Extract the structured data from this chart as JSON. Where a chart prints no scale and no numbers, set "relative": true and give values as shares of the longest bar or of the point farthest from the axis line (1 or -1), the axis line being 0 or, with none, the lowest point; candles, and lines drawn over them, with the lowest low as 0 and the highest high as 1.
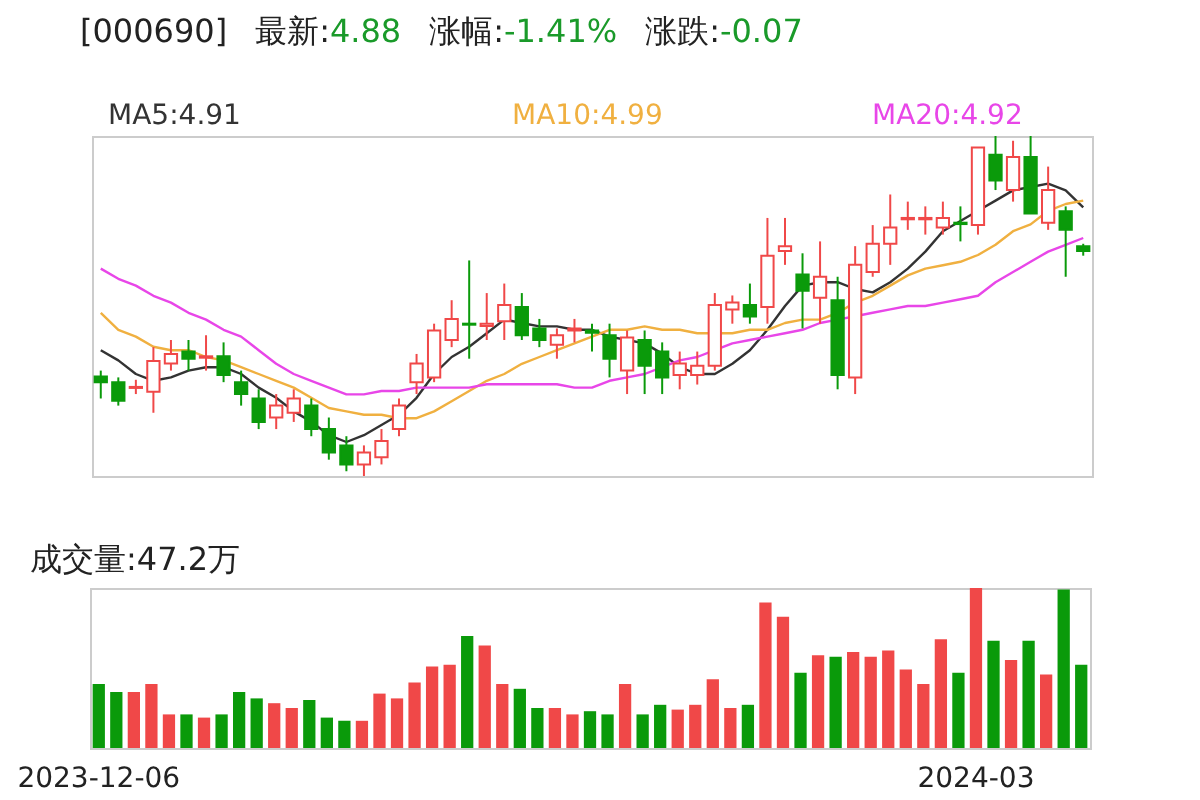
{
  "chart_data": [
    {
      "type": "candlestick",
      "title": "[000690]",
      "annotations": [
        "最新:4.88",
        "涨幅:-1.41%",
        "涨跌:-0.07"
      ],
      "relative": true,
      "categories": [
        null,
        null,
        null,
        null,
        null,
        null,
        null,
        null,
        null,
        null,
        null,
        null,
        null,
        null,
        null,
        null,
        null,
        null,
        null,
        null,
        null,
        null,
        null,
        null,
        null,
        null,
        null,
        null,
        null,
        null,
        null,
        null,
        null,
        null,
        null,
        null,
        null,
        null,
        null,
        null,
        null,
        null,
        null,
        null,
        null,
        null,
        null,
        null,
        null,
        null,
        null,
        null,
        null,
        null,
        null,
        null,
        null
      ],
      "ohlc": [
        [
          0.293,
          0.31,
          0.228,
          0.276
        ],
        [
          0.276,
          0.29,
          0.207,
          0.221
        ],
        [
          0.259,
          0.283,
          0.241,
          0.262
        ],
        [
          0.248,
          0.379,
          0.186,
          0.338
        ],
        [
          0.331,
          0.4,
          0.31,
          0.359
        ],
        [
          0.366,
          0.4,
          0.31,
          0.345
        ],
        [
          0.348,
          0.414,
          0.31,
          0.352
        ],
        [
          0.352,
          0.393,
          0.276,
          0.297
        ],
        [
          0.276,
          0.31,
          0.207,
          0.241
        ],
        [
          0.228,
          0.255,
          0.138,
          0.159
        ],
        [
          0.172,
          0.241,
          0.138,
          0.207
        ],
        [
          0.186,
          0.255,
          0.159,
          0.228
        ],
        [
          0.207,
          0.228,
          0.117,
          0.138
        ],
        [
          0.138,
          0.172,
          0.048,
          0.069
        ],
        [
          0.09,
          0.117,
          0.014,
          0.034
        ],
        [
          0.034,
          0.09,
          0.0,
          0.069
        ],
        [
          0.055,
          0.138,
          0.034,
          0.103
        ],
        [
          0.138,
          0.228,
          0.117,
          0.207
        ],
        [
          0.276,
          0.359,
          0.241,
          0.331
        ],
        [
          0.29,
          0.448,
          0.276,
          0.428
        ],
        [
          0.4,
          0.517,
          0.379,
          0.462
        ],
        [
          0.448,
          0.634,
          0.345,
          0.445
        ],
        [
          0.441,
          0.538,
          0.4,
          0.448
        ],
        [
          0.455,
          0.566,
          0.4,
          0.503
        ],
        [
          0.497,
          0.538,
          0.4,
          0.414
        ],
        [
          0.434,
          0.462,
          0.379,
          0.4
        ],
        [
          0.386,
          0.434,
          0.345,
          0.414
        ],
        [
          0.428,
          0.462,
          0.393,
          0.434
        ],
        [
          0.428,
          0.448,
          0.366,
          0.421
        ],
        [
          0.414,
          0.448,
          0.29,
          0.345
        ],
        [
          0.31,
          0.428,
          0.241,
          0.407
        ],
        [
          0.4,
          0.428,
          0.241,
          0.324
        ],
        [
          0.366,
          0.393,
          0.241,
          0.29
        ],
        [
          0.297,
          0.366,
          0.255,
          0.331
        ],
        [
          0.297,
          0.366,
          0.269,
          0.324
        ],
        [
          0.324,
          0.538,
          0.31,
          0.503
        ],
        [
          0.49,
          0.531,
          0.448,
          0.51
        ],
        [
          0.503,
          0.566,
          0.448,
          0.469
        ],
        [
          0.497,
          0.759,
          0.448,
          0.648
        ],
        [
          0.662,
          0.759,
          0.621,
          0.676
        ],
        [
          0.593,
          0.655,
          0.434,
          0.545
        ],
        [
          0.524,
          0.69,
          0.448,
          0.586
        ],
        [
          0.517,
          0.586,
          0.255,
          0.297
        ],
        [
          0.29,
          0.676,
          0.241,
          0.621
        ],
        [
          0.6,
          0.738,
          0.586,
          0.683
        ],
        [
          0.683,
          0.828,
          0.621,
          0.731
        ],
        [
          0.755,
          0.807,
          0.724,
          0.759
        ],
        [
          0.755,
          0.793,
          0.71,
          0.759
        ],
        [
          0.731,
          0.807,
          0.71,
          0.759
        ],
        [
          0.745,
          0.793,
          0.69,
          0.741
        ],
        [
          0.738,
          0.966,
          0.71,
          0.966
        ],
        [
          0.945,
          1.0,
          0.841,
          0.869
        ],
        [
          0.841,
          0.986,
          0.807,
          0.938
        ],
        [
          0.938,
          1.0,
          0.772,
          0.772
        ],
        [
          0.745,
          0.91,
          0.724,
          0.841
        ],
        [
          0.779,
          0.793,
          0.586,
          0.724
        ],
        [
          0.676,
          0.683,
          0.648,
          0.662
        ]
      ],
      "series": [
        {
          "name": "MA5:4.91",
          "type": "line",
          "color": "#333333",
          "values": [
            0.37,
            0.34,
            0.3,
            0.28,
            0.29,
            0.31,
            0.32,
            0.32,
            0.3,
            0.26,
            0.23,
            0.19,
            0.16,
            0.12,
            0.1,
            0.12,
            0.15,
            0.18,
            0.23,
            0.3,
            0.35,
            0.38,
            0.42,
            0.46,
            0.45,
            0.44,
            0.44,
            0.43,
            0.43,
            0.41,
            0.4,
            0.39,
            0.36,
            0.32,
            0.3,
            0.3,
            0.33,
            0.37,
            0.43,
            0.5,
            0.56,
            0.57,
            0.57,
            0.55,
            0.54,
            0.57,
            0.61,
            0.66,
            0.72,
            0.75,
            0.78,
            0.81,
            0.84,
            0.85,
            0.86,
            0.84,
            0.79
          ]
        },
        {
          "name": "MA10:4.99",
          "type": "line",
          "color": "#f0b040",
          "values": [
            0.48,
            0.43,
            0.41,
            0.38,
            0.37,
            0.37,
            0.35,
            0.34,
            0.32,
            0.3,
            0.28,
            0.26,
            0.23,
            0.2,
            0.19,
            0.18,
            0.18,
            0.17,
            0.17,
            0.19,
            0.22,
            0.25,
            0.28,
            0.3,
            0.33,
            0.35,
            0.37,
            0.39,
            0.41,
            0.43,
            0.43,
            0.44,
            0.43,
            0.43,
            0.42,
            0.42,
            0.42,
            0.43,
            0.43,
            0.45,
            0.46,
            0.46,
            0.48,
            0.51,
            0.53,
            0.56,
            0.59,
            0.61,
            0.62,
            0.63,
            0.65,
            0.68,
            0.72,
            0.74,
            0.78,
            0.8,
            0.81
          ]
        },
        {
          "name": "MA20:4.92",
          "type": "line",
          "color": "#e846e8",
          "values": [
            0.61,
            0.58,
            0.56,
            0.53,
            0.51,
            0.48,
            0.46,
            0.43,
            0.41,
            0.37,
            0.33,
            0.3,
            0.28,
            0.26,
            0.24,
            0.24,
            0.25,
            0.25,
            0.26,
            0.26,
            0.26,
            0.26,
            0.27,
            0.27,
            0.27,
            0.27,
            0.27,
            0.26,
            0.26,
            0.28,
            0.29,
            0.3,
            0.32,
            0.34,
            0.35,
            0.37,
            0.39,
            0.4,
            0.41,
            0.42,
            0.43,
            0.45,
            0.46,
            0.47,
            0.48,
            0.49,
            0.5,
            0.5,
            0.51,
            0.52,
            0.53,
            0.57,
            0.6,
            0.63,
            0.66,
            0.68,
            0.7
          ]
        }
      ]
    },
    {
      "type": "bar",
      "title": "成交量:47.2万",
      "relative": true,
      "categories": [
        "2023-12-06",
        null,
        null,
        null,
        null,
        null,
        null,
        null,
        null,
        null,
        null,
        null,
        null,
        null,
        null,
        null,
        null,
        null,
        null,
        null,
        null,
        null,
        null,
        null,
        null,
        null,
        null,
        null,
        null,
        null,
        null,
        null,
        null,
        null,
        null,
        null,
        null,
        null,
        null,
        null,
        null,
        null,
        null,
        null,
        null,
        null,
        null,
        null,
        null,
        null,
        "2024-03",
        null,
        null,
        null,
        null,
        null,
        null
      ],
      "values": [
        0.4,
        0.35,
        0.35,
        0.4,
        0.21,
        0.21,
        0.19,
        0.21,
        0.35,
        0.31,
        0.28,
        0.25,
        0.3,
        0.19,
        0.17,
        0.17,
        0.34,
        0.31,
        0.41,
        0.51,
        0.52,
        0.7,
        0.64,
        0.4,
        0.37,
        0.25,
        0.25,
        0.21,
        0.23,
        0.21,
        0.4,
        0.21,
        0.27,
        0.24,
        0.27,
        0.43,
        0.25,
        0.27,
        0.91,
        0.82,
        0.47,
        0.58,
        0.57,
        0.6,
        0.57,
        0.61,
        0.49,
        0.4,
        0.68,
        0.47,
        1.0,
        0.67,
        0.55,
        0.67,
        0.46,
        0.99,
        0.52
      ],
      "colors": [
        "#0a9a0a",
        "#0a9a0a",
        "#f04848",
        "#f04848",
        "#f04848",
        "#0a9a0a",
        "#f04848",
        "#0a9a0a",
        "#0a9a0a",
        "#0a9a0a",
        "#f04848",
        "#f04848",
        "#0a9a0a",
        "#0a9a0a",
        "#0a9a0a",
        "#f04848",
        "#f04848",
        "#f04848",
        "#f04848",
        "#f04848",
        "#f04848",
        "#0a9a0a",
        "#f04848",
        "#f04848",
        "#0a9a0a",
        "#0a9a0a",
        "#f04848",
        "#f04848",
        "#0a9a0a",
        "#0a9a0a",
        "#f04848",
        "#0a9a0a",
        "#0a9a0a",
        "#f04848",
        "#f04848",
        "#f04848",
        "#f04848",
        "#0a9a0a",
        "#f04848",
        "#f04848",
        "#0a9a0a",
        "#f04848",
        "#0a9a0a",
        "#f04848",
        "#f04848",
        "#f04848",
        "#f04848",
        "#f04848",
        "#f04848",
        "#0a9a0a",
        "#f04848",
        "#0a9a0a",
        "#f04848",
        "#0a9a0a",
        "#f04848",
        "#0a9a0a",
        "#0a9a0a"
      ]
    }
  ]
}
